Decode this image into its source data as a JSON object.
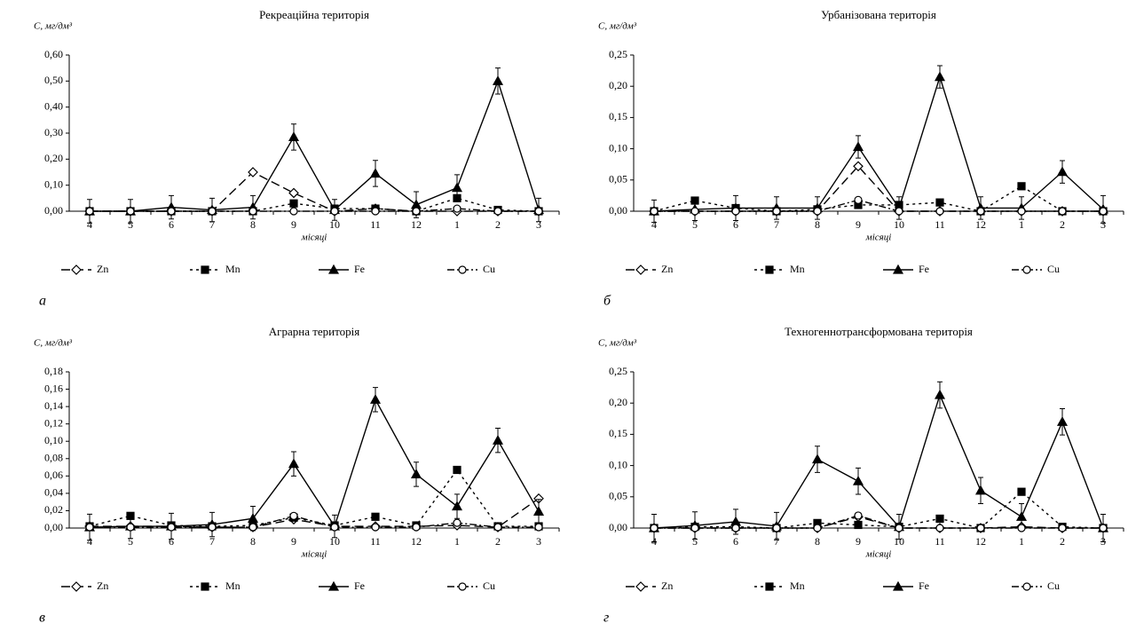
{
  "chart_data": [
    {
      "type": "line",
      "title": "Рекреаційна територія",
      "y_label": "C, мг/дм³",
      "x_label": "місяці",
      "label": "а",
      "categories": [
        "4",
        "5",
        "6",
        "7",
        "8",
        "9",
        "10",
        "11",
        "12",
        "1",
        "2",
        "3"
      ],
      "series": [
        {
          "name": "Zn",
          "color": "#000000",
          "values": [
            0,
            0,
            0,
            0,
            0.15,
            0.07,
            0,
            0.01,
            0,
            0,
            0,
            0
          ]
        },
        {
          "name": "Mn",
          "color": "#000000",
          "values": [
            0,
            0,
            0,
            0,
            0,
            0.03,
            0.01,
            0.01,
            0,
            0.05,
            0.005,
            0
          ]
        },
        {
          "name": "Fe",
          "color": "#000000",
          "values": [
            0,
            0,
            0.015,
            0.005,
            0.015,
            0.285,
            0.005,
            0.145,
            0.025,
            0.09,
            0.5,
            0.005
          ],
          "errors": [
            0.045,
            0.045,
            0.045,
            0.045,
            0.045,
            0.05,
            0.04,
            0.05,
            0.05,
            0.05,
            0.05,
            0.045
          ]
        },
        {
          "name": "Cu",
          "color": "#000000",
          "values": [
            0,
            0,
            0,
            0,
            0,
            0,
            0,
            0,
            0,
            0.01,
            0,
            0
          ]
        }
      ],
      "ylim": [
        0,
        0.6
      ],
      "yticks": [
        {
          "value": 0,
          "label": "0,00"
        },
        {
          "value": 0.1,
          "label": "0,10"
        },
        {
          "value": 0.2,
          "label": "0,20"
        },
        {
          "value": 0.3,
          "label": "0,30"
        },
        {
          "value": 0.4,
          "label": "0,40"
        },
        {
          "value": 0.5,
          "label": "0,50"
        },
        {
          "value": 0.6,
          "label": "0,60"
        }
      ],
      "grid": false
    },
    {
      "type": "line",
      "title": "Урбанізована територія",
      "y_label": "C, мг/дм³",
      "x_label": "місяці",
      "label": "б",
      "categories": [
        "4",
        "5",
        "6",
        "7",
        "8",
        "9",
        "10",
        "11",
        "12",
        "1",
        "2",
        "3"
      ],
      "series": [
        {
          "name": "Zn",
          "color": "#000000",
          "values": [
            0,
            0,
            0,
            0,
            0,
            0.072,
            0,
            0,
            0,
            0,
            0,
            0
          ]
        },
        {
          "name": "Mn",
          "color": "#000000",
          "values": [
            0,
            0.017,
            0.005,
            0,
            0.003,
            0.01,
            0.01,
            0.014,
            0,
            0.04,
            0,
            0
          ]
        },
        {
          "name": "Fe",
          "color": "#000000",
          "values": [
            0,
            0.003,
            0.005,
            0.005,
            0.005,
            0.103,
            0.005,
            0.215,
            0.005,
            0.005,
            0.063,
            0.003
          ],
          "errors": [
            0.018,
            0.018,
            0.02,
            0.018,
            0.018,
            0.018,
            0.018,
            0.018,
            0.018,
            0.018,
            0.018,
            0.022
          ]
        },
        {
          "name": "Cu",
          "color": "#000000",
          "values": [
            0,
            0,
            0,
            0,
            0,
            0.018,
            0,
            0,
            0,
            0,
            0,
            0
          ]
        }
      ],
      "ylim": [
        0,
        0.25
      ],
      "yticks": [
        {
          "value": 0,
          "label": "0,00"
        },
        {
          "value": 0.05,
          "label": "0,05"
        },
        {
          "value": 0.1,
          "label": "0,10"
        },
        {
          "value": 0.15,
          "label": "0,15"
        },
        {
          "value": 0.2,
          "label": "0,20"
        },
        {
          "value": 0.25,
          "label": "0,25"
        }
      ],
      "grid": false
    },
    {
      "type": "line",
      "title": "Аграрна територія",
      "y_label": "C, мг/дм³",
      "x_label": "місяці",
      "label": "в",
      "categories": [
        "4",
        "5",
        "6",
        "7",
        "8",
        "9",
        "10",
        "11",
        "12",
        "1",
        "2",
        "3"
      ],
      "series": [
        {
          "name": "Zn",
          "color": "#000000",
          "values": [
            0.002,
            0.002,
            0.002,
            0.001,
            0.001,
            0.01,
            0.002,
            0.002,
            0.002,
            0.003,
            0.001,
            0.034
          ]
        },
        {
          "name": "Mn",
          "color": "#000000",
          "values": [
            0.002,
            0.014,
            0.003,
            0.002,
            0.003,
            0.012,
            0.003,
            0.013,
            0.003,
            0.067,
            0.002,
            0.002
          ]
        },
        {
          "name": "Fe",
          "color": "#000000",
          "values": [
            0.001,
            0.002,
            0.002,
            0.004,
            0.011,
            0.074,
            0.002,
            0.148,
            0.062,
            0.025,
            0.101,
            0.019
          ],
          "errors": [
            0.015,
            0.014,
            0.015,
            0.014,
            0.014,
            0.014,
            0.013,
            0.014,
            0.014,
            0.014,
            0.014,
            0.014
          ]
        },
        {
          "name": "Cu",
          "color": "#000000",
          "values": [
            0.001,
            0.001,
            0.001,
            0.001,
            0.001,
            0.014,
            0.001,
            0.001,
            0.001,
            0.006,
            0.001,
            0.001
          ]
        }
      ],
      "ylim": [
        0,
        0.18
      ],
      "yticks": [
        {
          "value": 0,
          "label": "0,00"
        },
        {
          "value": 0.02,
          "label": "0,02"
        },
        {
          "value": 0.04,
          "label": "0,04"
        },
        {
          "value": 0.06,
          "label": "0,06"
        },
        {
          "value": 0.08,
          "label": "0,08"
        },
        {
          "value": 0.1,
          "label": "0,10"
        },
        {
          "value": 0.12,
          "label": "0,12"
        },
        {
          "value": 0.14,
          "label": "0,14"
        },
        {
          "value": 0.16,
          "label": "0,16"
        },
        {
          "value": 0.18,
          "label": "0,18"
        }
      ],
      "grid": false
    },
    {
      "type": "line",
      "title": "Техногеннотрансформована територія",
      "y_label": "C, мг/дм³",
      "x_label": "місяці",
      "label": "г",
      "categories": [
        "4",
        "5",
        "6",
        "7",
        "8",
        "9",
        "10",
        "11",
        "12",
        "1",
        "2",
        "3"
      ],
      "series": [
        {
          "name": "Zn",
          "color": "#000000",
          "values": [
            0,
            0,
            0,
            0,
            0,
            0.018,
            0,
            0,
            0,
            0.002,
            0,
            0
          ]
        },
        {
          "name": "Mn",
          "color": "#000000",
          "values": [
            0,
            0.002,
            0.002,
            0,
            0.008,
            0.005,
            0.002,
            0.015,
            0,
            0.058,
            0.002,
            0
          ]
        },
        {
          "name": "Fe",
          "color": "#000000",
          "values": [
            0,
            0.004,
            0.01,
            0.003,
            0.11,
            0.075,
            0.002,
            0.213,
            0.06,
            0.018,
            0.17,
            0
          ],
          "errors": [
            0.022,
            0.022,
            0.02,
            0.022,
            0.021,
            0.021,
            0.02,
            0.021,
            0.021,
            0.021,
            0.021,
            0.022
          ]
        },
        {
          "name": "Cu",
          "color": "#000000",
          "values": [
            0,
            0,
            0,
            0,
            0,
            0.02,
            0,
            0,
            0,
            0,
            0,
            0
          ]
        }
      ],
      "ylim": [
        0,
        0.25
      ],
      "yticks": [
        {
          "value": 0,
          "label": "0,00"
        },
        {
          "value": 0.05,
          "label": "0,05"
        },
        {
          "value": 0.1,
          "label": "0,10"
        },
        {
          "value": 0.15,
          "label": "0,15"
        },
        {
          "value": 0.2,
          "label": "0,20"
        },
        {
          "value": 0.25,
          "label": "0,25"
        }
      ],
      "grid": false
    }
  ]
}
